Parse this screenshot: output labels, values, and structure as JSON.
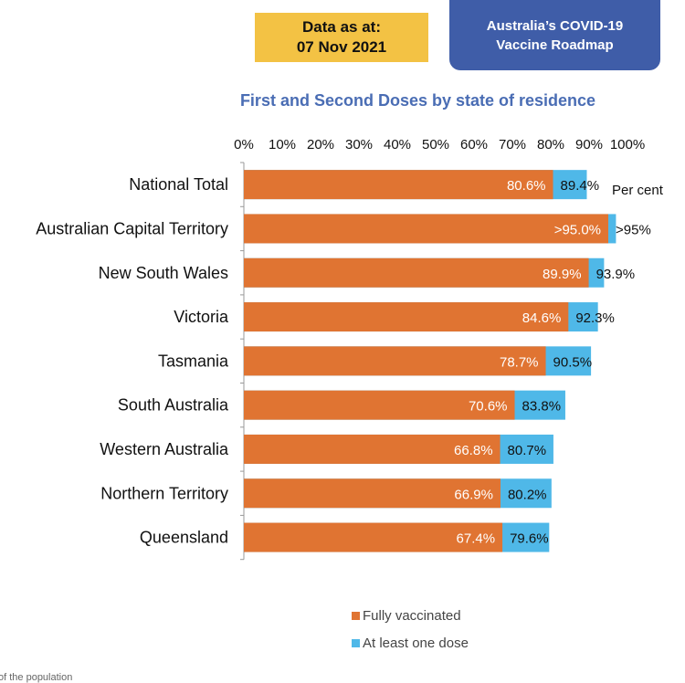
{
  "header": {
    "date_label": "Data as at:",
    "date_value": "07 Nov 2021",
    "roadmap_line1": "Australia’s COVID-19",
    "roadmap_line2": "Vaccine Roadmap"
  },
  "footnote": "of the population",
  "colors": {
    "fully": "#e07432",
    "one_dose": "#4fb8e8",
    "title": "#4a6db4",
    "badge_yellow": "#f3c244",
    "badge_blue": "#3f5da8"
  },
  "chart_data": {
    "type": "bar",
    "orientation": "horizontal",
    "title": "First and Second Doses by state of residence",
    "unit_label": "Per cent",
    "xlim": [
      0,
      100
    ],
    "x_ticks": [
      "0%",
      "10%",
      "20%",
      "30%",
      "40%",
      "50%",
      "60%",
      "70%",
      "80%",
      "90%",
      "100%"
    ],
    "x_tick_values": [
      0,
      10,
      20,
      30,
      40,
      50,
      60,
      70,
      80,
      90,
      100
    ],
    "categories": [
      "National Total",
      "Australian Capital Territory",
      "New South Wales",
      "Victoria",
      "Tasmania",
      "South Australia",
      "Western Australia",
      "Northern Territory",
      "Queensland"
    ],
    "series": [
      {
        "name": "Fully vaccinated",
        "values": [
          80.6,
          95.0,
          89.9,
          84.6,
          78.7,
          70.6,
          66.8,
          66.9,
          67.4
        ],
        "labels": [
          "80.6%",
          ">95.0%",
          "89.9%",
          "84.6%",
          "78.7%",
          "70.6%",
          "66.8%",
          "66.9%",
          "67.4%"
        ]
      },
      {
        "name": "At least one dose",
        "values": [
          89.4,
          97.0,
          93.9,
          92.3,
          90.5,
          83.8,
          80.7,
          80.2,
          79.6
        ],
        "labels": [
          "89.4%",
          ">95%",
          "93.9%",
          "92.3%",
          "90.5%",
          "83.8%",
          "80.7%",
          "80.2%",
          "79.6%"
        ]
      }
    ],
    "legend_position": "bottom"
  }
}
